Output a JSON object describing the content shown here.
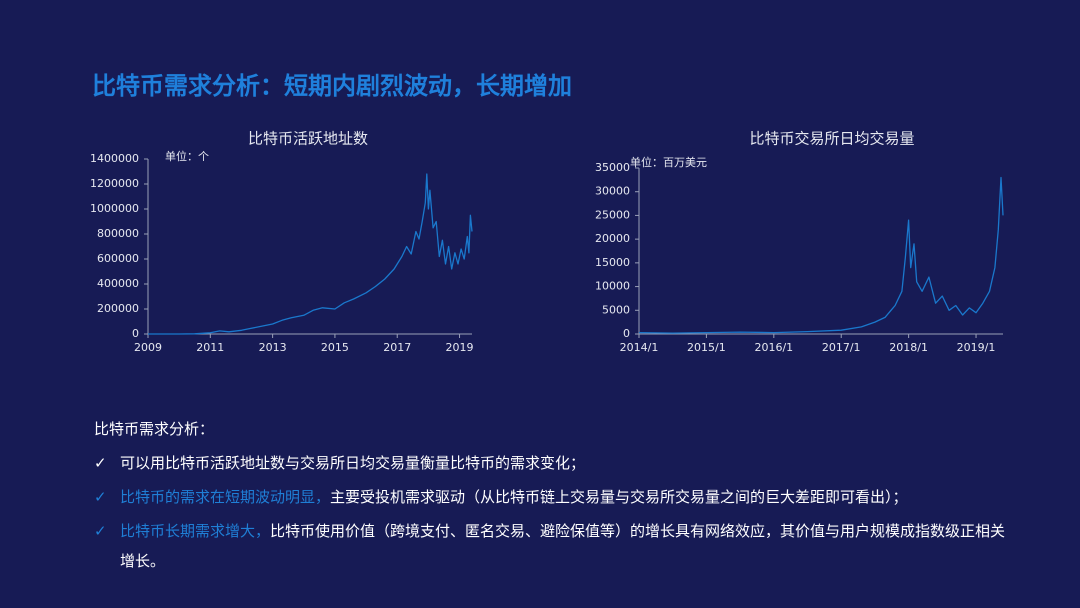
{
  "title": "比特币需求分析：短期内剧烈波动，长期增加",
  "chart_data": [
    {
      "type": "line",
      "title": "比特币活跃地址数",
      "unit_label": "单位：个",
      "color": "#1a78cc",
      "xlim": [
        2009,
        2019.4
      ],
      "xticks": [
        2009,
        2011,
        2013,
        2015,
        2017,
        2019
      ],
      "ylim": [
        0,
        1400000
      ],
      "yticks": [
        0,
        200000,
        400000,
        600000,
        800000,
        1000000,
        1200000,
        1400000
      ],
      "x": [
        2009,
        2010,
        2010.5,
        2011,
        2011.3,
        2011.6,
        2012,
        2012.3,
        2012.6,
        2013,
        2013.3,
        2013.6,
        2014,
        2014.3,
        2014.6,
        2015,
        2015.3,
        2015.6,
        2016,
        2016.3,
        2016.6,
        2016.9,
        2017,
        2017.15,
        2017.3,
        2017.45,
        2017.6,
        2017.7,
        2017.8,
        2017.9,
        2017.95,
        2018,
        2018.05,
        2018.15,
        2018.25,
        2018.35,
        2018.45,
        2018.55,
        2018.65,
        2018.75,
        2018.85,
        2018.95,
        2019.05,
        2019.15,
        2019.25,
        2019.3,
        2019.35,
        2019.4
      ],
      "values": [
        0,
        0,
        2000,
        10000,
        25000,
        18000,
        30000,
        45000,
        60000,
        80000,
        110000,
        130000,
        150000,
        190000,
        210000,
        200000,
        250000,
        280000,
        330000,
        380000,
        440000,
        520000,
        560000,
        620000,
        700000,
        640000,
        820000,
        760000,
        900000,
        1050000,
        1280000,
        1000000,
        1150000,
        850000,
        900000,
        620000,
        750000,
        560000,
        700000,
        520000,
        650000,
        560000,
        680000,
        600000,
        780000,
        650000,
        950000,
        820000
      ]
    },
    {
      "type": "line",
      "title": "比特币交易所日均交易量",
      "unit_label": "单位：百万美元",
      "color": "#1a78cc",
      "xlim": [
        2014,
        2019.4
      ],
      "xticks": [
        {
          "value": 2014,
          "label": "2014/1"
        },
        {
          "value": 2015,
          "label": "2015/1"
        },
        {
          "value": 2016,
          "label": "2016/1"
        },
        {
          "value": 2017,
          "label": "2017/1"
        },
        {
          "value": 2018,
          "label": "2018/1"
        },
        {
          "value": 2019,
          "label": "2019/1"
        }
      ],
      "ylim": [
        0,
        35000
      ],
      "yticks": [
        0,
        5000,
        10000,
        15000,
        20000,
        25000,
        30000,
        35000
      ],
      "x": [
        2014,
        2014.5,
        2015,
        2015.5,
        2016,
        2016.5,
        2017,
        2017.3,
        2017.5,
        2017.65,
        2017.8,
        2017.9,
        2017.95,
        2018,
        2018.03,
        2018.08,
        2018.12,
        2018.2,
        2018.3,
        2018.4,
        2018.5,
        2018.6,
        2018.7,
        2018.8,
        2018.9,
        2019,
        2019.1,
        2019.2,
        2019.28,
        2019.33,
        2019.37,
        2019.4
      ],
      "values": [
        300,
        200,
        300,
        400,
        300,
        500,
        800,
        1500,
        2500,
        3500,
        6000,
        9000,
        16000,
        24000,
        14000,
        19000,
        11000,
        9000,
        12000,
        6500,
        8000,
        5000,
        6000,
        4000,
        5500,
        4500,
        6500,
        9000,
        14000,
        22000,
        33000,
        25000
      ]
    }
  ],
  "notes": {
    "heading": "比特币需求分析：",
    "items": [
      {
        "check": "✓",
        "text": "可以用比特币活跃地址数与交易所日均交易量衡量比特币的需求变化；"
      },
      {
        "check": "✓",
        "highlight": "比特币的需求在短期波动明显，",
        "text": "主要受投机需求驱动（从比特币链上交易量与交易所交易量之间的巨大差距即可看出）；"
      },
      {
        "check": "✓",
        "highlight": "比特币长期需求增大，",
        "text": "比特币使用价值（跨境支付、匿名交易、避险保值等）的增长具有网络效应，其价值与用户规模成指数级正相关增长。"
      }
    ]
  }
}
